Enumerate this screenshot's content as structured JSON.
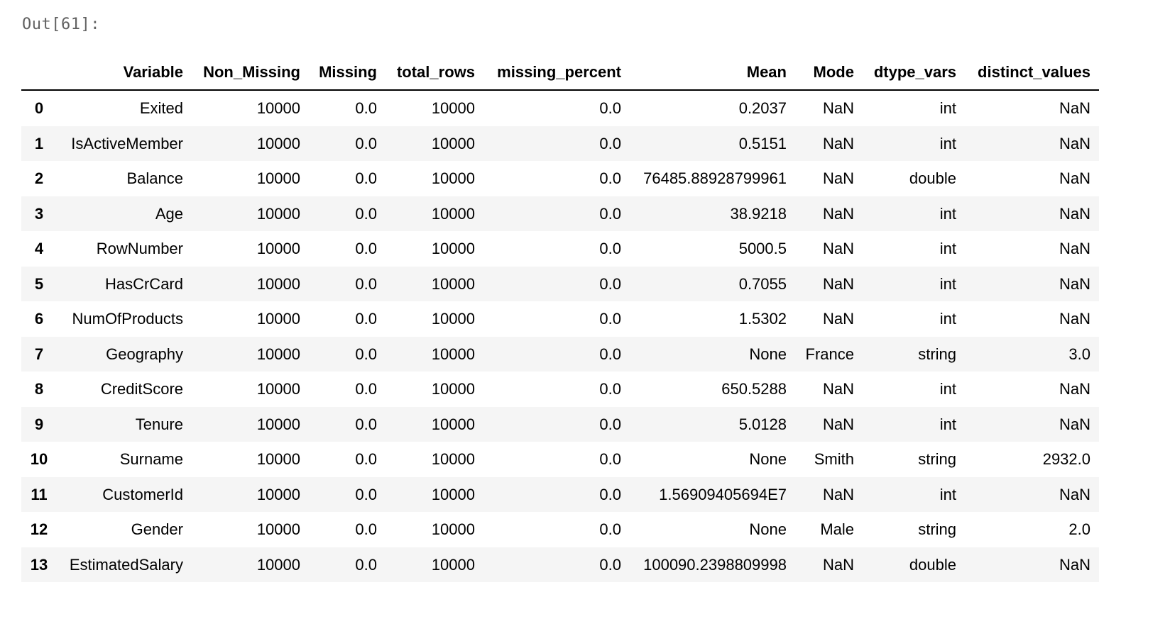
{
  "output": {
    "prompt": "Out[61]:"
  },
  "table": {
    "columns": [
      "",
      "Variable",
      "Non_Missing",
      "Missing",
      "total_rows",
      "missing_percent",
      "Mean",
      "Mode",
      "dtype_vars",
      "distinct_values"
    ],
    "rows": [
      [
        "0",
        "Exited",
        "10000",
        "0.0",
        "10000",
        "0.0",
        "0.2037",
        "NaN",
        "int",
        "NaN"
      ],
      [
        "1",
        "IsActiveMember",
        "10000",
        "0.0",
        "10000",
        "0.0",
        "0.5151",
        "NaN",
        "int",
        "NaN"
      ],
      [
        "2",
        "Balance",
        "10000",
        "0.0",
        "10000",
        "0.0",
        "76485.88928799961",
        "NaN",
        "double",
        "NaN"
      ],
      [
        "3",
        "Age",
        "10000",
        "0.0",
        "10000",
        "0.0",
        "38.9218",
        "NaN",
        "int",
        "NaN"
      ],
      [
        "4",
        "RowNumber",
        "10000",
        "0.0",
        "10000",
        "0.0",
        "5000.5",
        "NaN",
        "int",
        "NaN"
      ],
      [
        "5",
        "HasCrCard",
        "10000",
        "0.0",
        "10000",
        "0.0",
        "0.7055",
        "NaN",
        "int",
        "NaN"
      ],
      [
        "6",
        "NumOfProducts",
        "10000",
        "0.0",
        "10000",
        "0.0",
        "1.5302",
        "NaN",
        "int",
        "NaN"
      ],
      [
        "7",
        "Geography",
        "10000",
        "0.0",
        "10000",
        "0.0",
        "None",
        "France",
        "string",
        "3.0"
      ],
      [
        "8",
        "CreditScore",
        "10000",
        "0.0",
        "10000",
        "0.0",
        "650.5288",
        "NaN",
        "int",
        "NaN"
      ],
      [
        "9",
        "Tenure",
        "10000",
        "0.0",
        "10000",
        "0.0",
        "5.0128",
        "NaN",
        "int",
        "NaN"
      ],
      [
        "10",
        "Surname",
        "10000",
        "0.0",
        "10000",
        "0.0",
        "None",
        "Smith",
        "string",
        "2932.0"
      ],
      [
        "11",
        "CustomerId",
        "10000",
        "0.0",
        "10000",
        "0.0",
        "1.56909405694E7",
        "NaN",
        "int",
        "NaN"
      ],
      [
        "12",
        "Gender",
        "10000",
        "0.0",
        "10000",
        "0.0",
        "None",
        "Male",
        "string",
        "2.0"
      ],
      [
        "13",
        "EstimatedSalary",
        "10000",
        "0.0",
        "10000",
        "0.0",
        "100090.2398809998",
        "NaN",
        "double",
        "NaN"
      ]
    ]
  }
}
